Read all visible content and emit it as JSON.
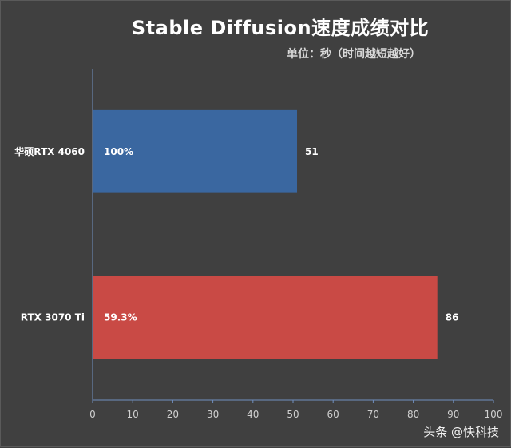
{
  "chart_data": {
    "type": "bar",
    "orientation": "horizontal",
    "title": "Stable Diffusion速度成绩对比",
    "subtitle": "单位：秒（时间越短越好）",
    "categories": [
      "华硕RTX 4060",
      "RTX 3070 Ti"
    ],
    "values": [
      51,
      86
    ],
    "percent_labels": [
      "100%",
      "59.3%"
    ],
    "colors": [
      "#3a67a0",
      "#c94a45"
    ],
    "xlim": [
      0,
      100
    ],
    "xticks": [
      0,
      10,
      20,
      30,
      40,
      50,
      60,
      70,
      80,
      90,
      100
    ],
    "xlabel": "",
    "ylabel": "",
    "grid": false,
    "legend": "none"
  },
  "watermark": "头条 @快科技",
  "colors": {
    "background": "#404040",
    "axis": "#6f8fbf",
    "text": "#ffffff"
  }
}
